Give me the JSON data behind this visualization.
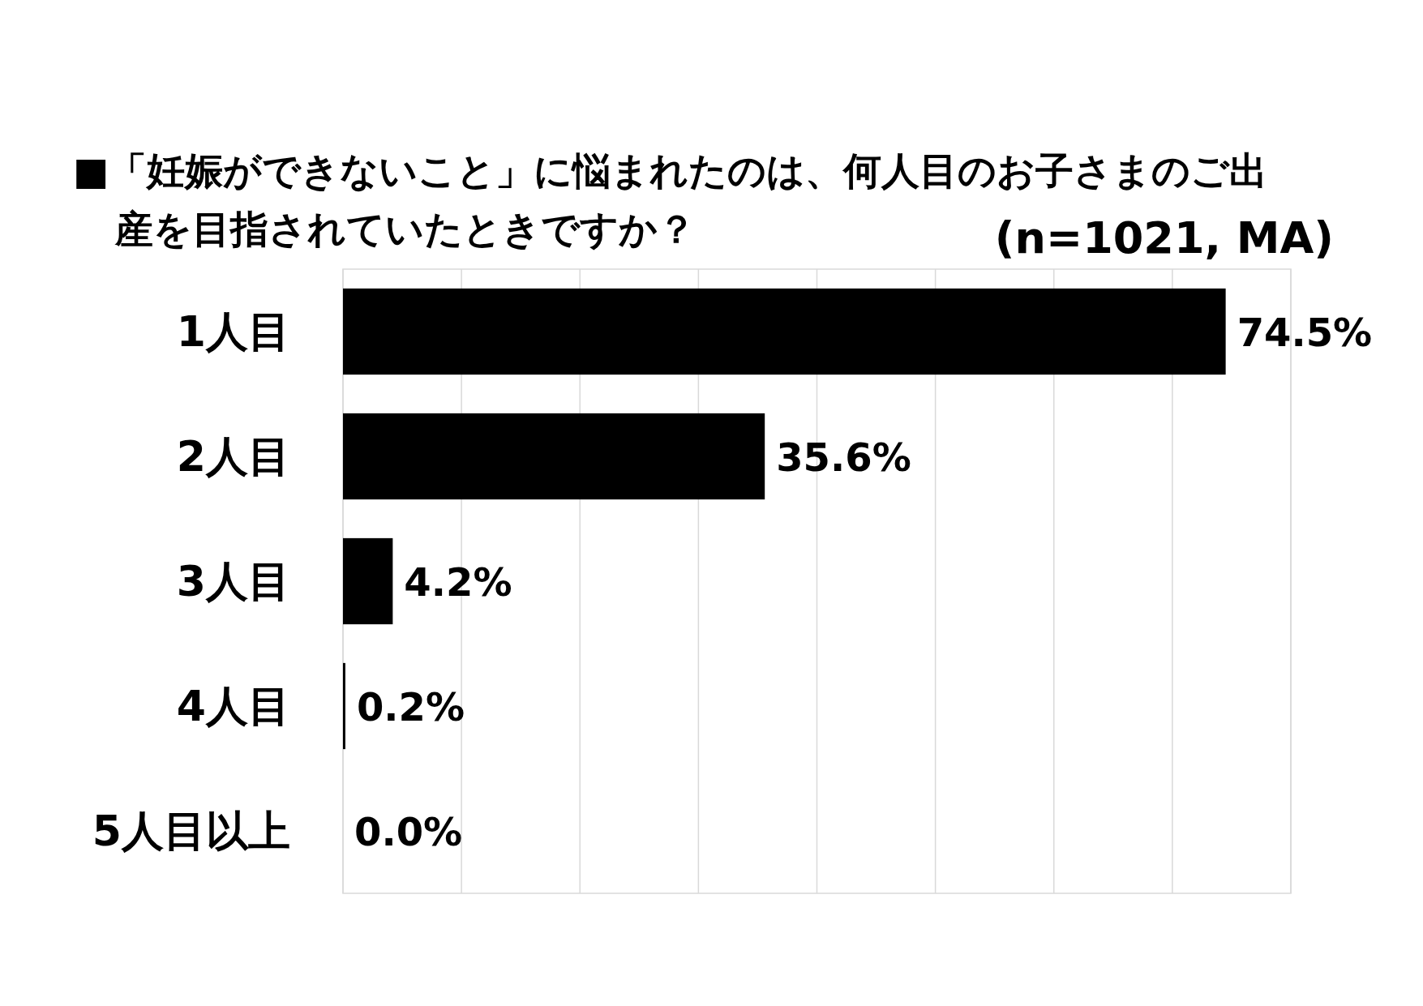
{
  "chart_data": {
    "type": "bar",
    "orientation": "horizontal",
    "title": "■「妊娠ができないこと」に悩まれたのは、何人目のお子さまのご出産を目指されていたときですか？",
    "subtitle": "(n=1021, MA)",
    "categories": [
      "1人目",
      "2人目",
      "3人目",
      "4人目",
      "5人目以上"
    ],
    "values": [
      74.5,
      35.6,
      4.2,
      0.2,
      0.0
    ],
    "value_labels": [
      "74.5%",
      "35.6%",
      "4.2%",
      "0.2%",
      "0.0%"
    ],
    "color": "#000000",
    "xlim": [
      0,
      80
    ],
    "xticks": [
      {
        "value": 0,
        "label": null
      },
      {
        "value": 10,
        "label": null
      },
      {
        "value": 20,
        "label": null
      },
      {
        "value": 30,
        "label": null
      },
      {
        "value": 40,
        "label": null
      },
      {
        "value": 50,
        "label": null
      },
      {
        "value": 60,
        "label": null
      },
      {
        "value": 70,
        "label": null
      },
      {
        "value": 80,
        "label": null
      }
    ],
    "grid": "x",
    "tick_labels": "y"
  }
}
